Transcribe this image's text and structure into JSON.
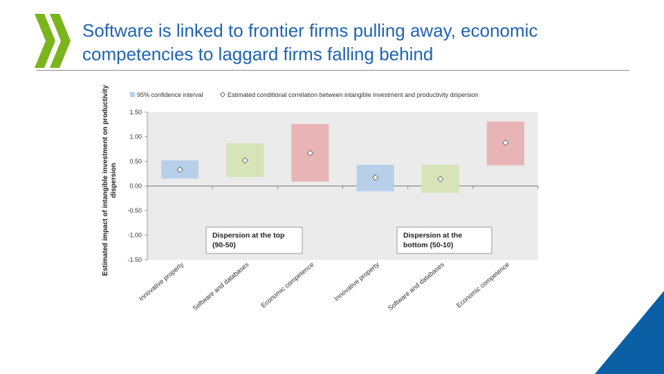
{
  "slide": {
    "title": "Software is linked to frontier firms pulling away, economic competencies to laggard firms falling behind",
    "brand_color": "#1f63b3",
    "logo_color": "#7ab51d",
    "corner_color": "#0b5fa5"
  },
  "chart_data": {
    "type": "range-bar",
    "title": "",
    "ylabel": "Estimated impact of intangible investment on productivity dispersion",
    "ylim": [
      -1.5,
      1.5
    ],
    "yticks": [
      "1.50",
      "1.00",
      "0.50",
      "0.00",
      "-0.50",
      "-1.00",
      "-1.50"
    ],
    "ytick_values": [
      1.5,
      1.0,
      0.5,
      0.0,
      -0.5,
      -1.0,
      -1.5
    ],
    "categories": [
      "Innovative property",
      "Software and databases",
      "Economic competence",
      "Innovative property",
      "Software and databases",
      "Economic competence"
    ],
    "legend": [
      {
        "label": "95% confidence interval",
        "marker": "square"
      },
      {
        "label": "Estimated conditional correlation between intangible investment and productivity dispersion",
        "marker": "diamond"
      }
    ],
    "legend_position": "top",
    "series": [
      {
        "name": "95% confidence interval",
        "low": [
          0.15,
          0.18,
          0.09,
          -0.11,
          -0.14,
          0.42
        ],
        "high": [
          0.52,
          0.87,
          1.26,
          0.43,
          0.43,
          1.31
        ]
      },
      {
        "name": "Estimated conditional correlation between intangible investment and productivity dispersion",
        "values": [
          0.33,
          0.52,
          0.67,
          0.17,
          0.14,
          0.88
        ]
      }
    ],
    "bar_colors": [
      "#b8cfe9",
      "#d6e4b7",
      "#e9b4b6",
      "#b8cfe9",
      "#d6e4b7",
      "#e9b4b6"
    ],
    "annotations": [
      {
        "label": "Dispersion at the top (90-50)"
      },
      {
        "label": "Dispersion at the bottom (50-10)"
      }
    ],
    "plot_background": "#ebebeb",
    "grid": false
  }
}
